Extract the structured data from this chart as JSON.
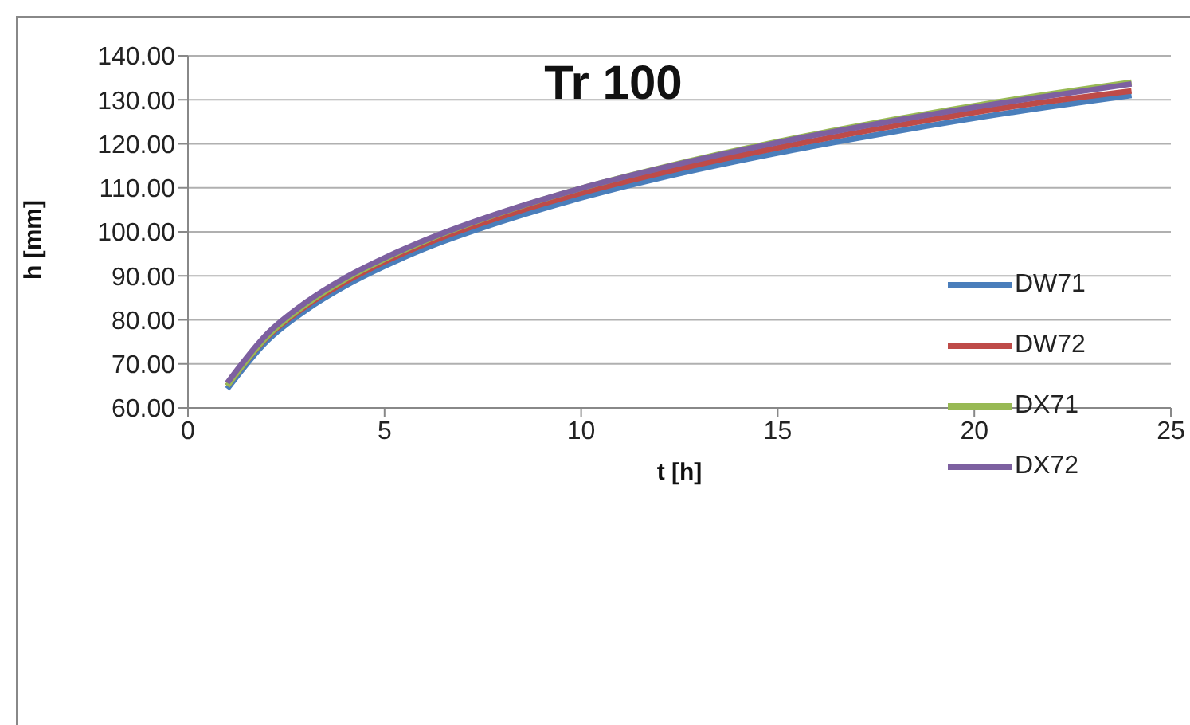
{
  "chart_data": {
    "type": "line",
    "title": "Tr 100",
    "xlabel": "t [h]",
    "ylabel": "h [mm]",
    "x": [
      1,
      2,
      3,
      4,
      5,
      6,
      8,
      10,
      12,
      15,
      18,
      21,
      24
    ],
    "series": [
      {
        "name": "DW71",
        "color": "#4a7ebb",
        "values": [
          64.3,
          75.1,
          82.2,
          87.7,
          92.2,
          96.1,
          102.4,
          107.7,
          112.2,
          117.9,
          122.8,
          127.2,
          131.0
        ]
      },
      {
        "name": "DW72",
        "color": "#be4b48",
        "values": [
          65.0,
          75.9,
          83.1,
          88.6,
          93.2,
          97.1,
          103.5,
          108.8,
          113.3,
          119.1,
          124.1,
          128.5,
          132.0
        ]
      },
      {
        "name": "DX71",
        "color": "#98b954",
        "values": [
          65.0,
          76.1,
          83.5,
          89.2,
          93.8,
          97.8,
          104.4,
          109.9,
          114.5,
          120.5,
          125.6,
          130.1,
          134.0
        ]
      },
      {
        "name": "DX72",
        "color": "#7d60a0",
        "values": [
          65.7,
          76.7,
          84.0,
          89.6,
          94.1,
          98.0,
          104.5,
          109.9,
          114.4,
          120.3,
          125.3,
          129.7,
          133.6
        ]
      }
    ],
    "xlim": [
      0,
      25
    ],
    "xticks": [
      0,
      5,
      10,
      15,
      20,
      25
    ],
    "ylim": [
      60,
      140
    ],
    "yticks": [
      {
        "value": 60,
        "label": "60.00"
      },
      {
        "value": 70,
        "label": "70.00"
      },
      {
        "value": 80,
        "label": "80.00"
      },
      {
        "value": 90,
        "label": "90.00"
      },
      {
        "value": 100,
        "label": "100.00"
      },
      {
        "value": 110,
        "label": "110.00"
      },
      {
        "value": 120,
        "label": "120.00"
      },
      {
        "value": 130,
        "label": "130.00"
      },
      {
        "value": 140,
        "label": "140.00"
      }
    ],
    "grid": "y",
    "legend": "right"
  }
}
